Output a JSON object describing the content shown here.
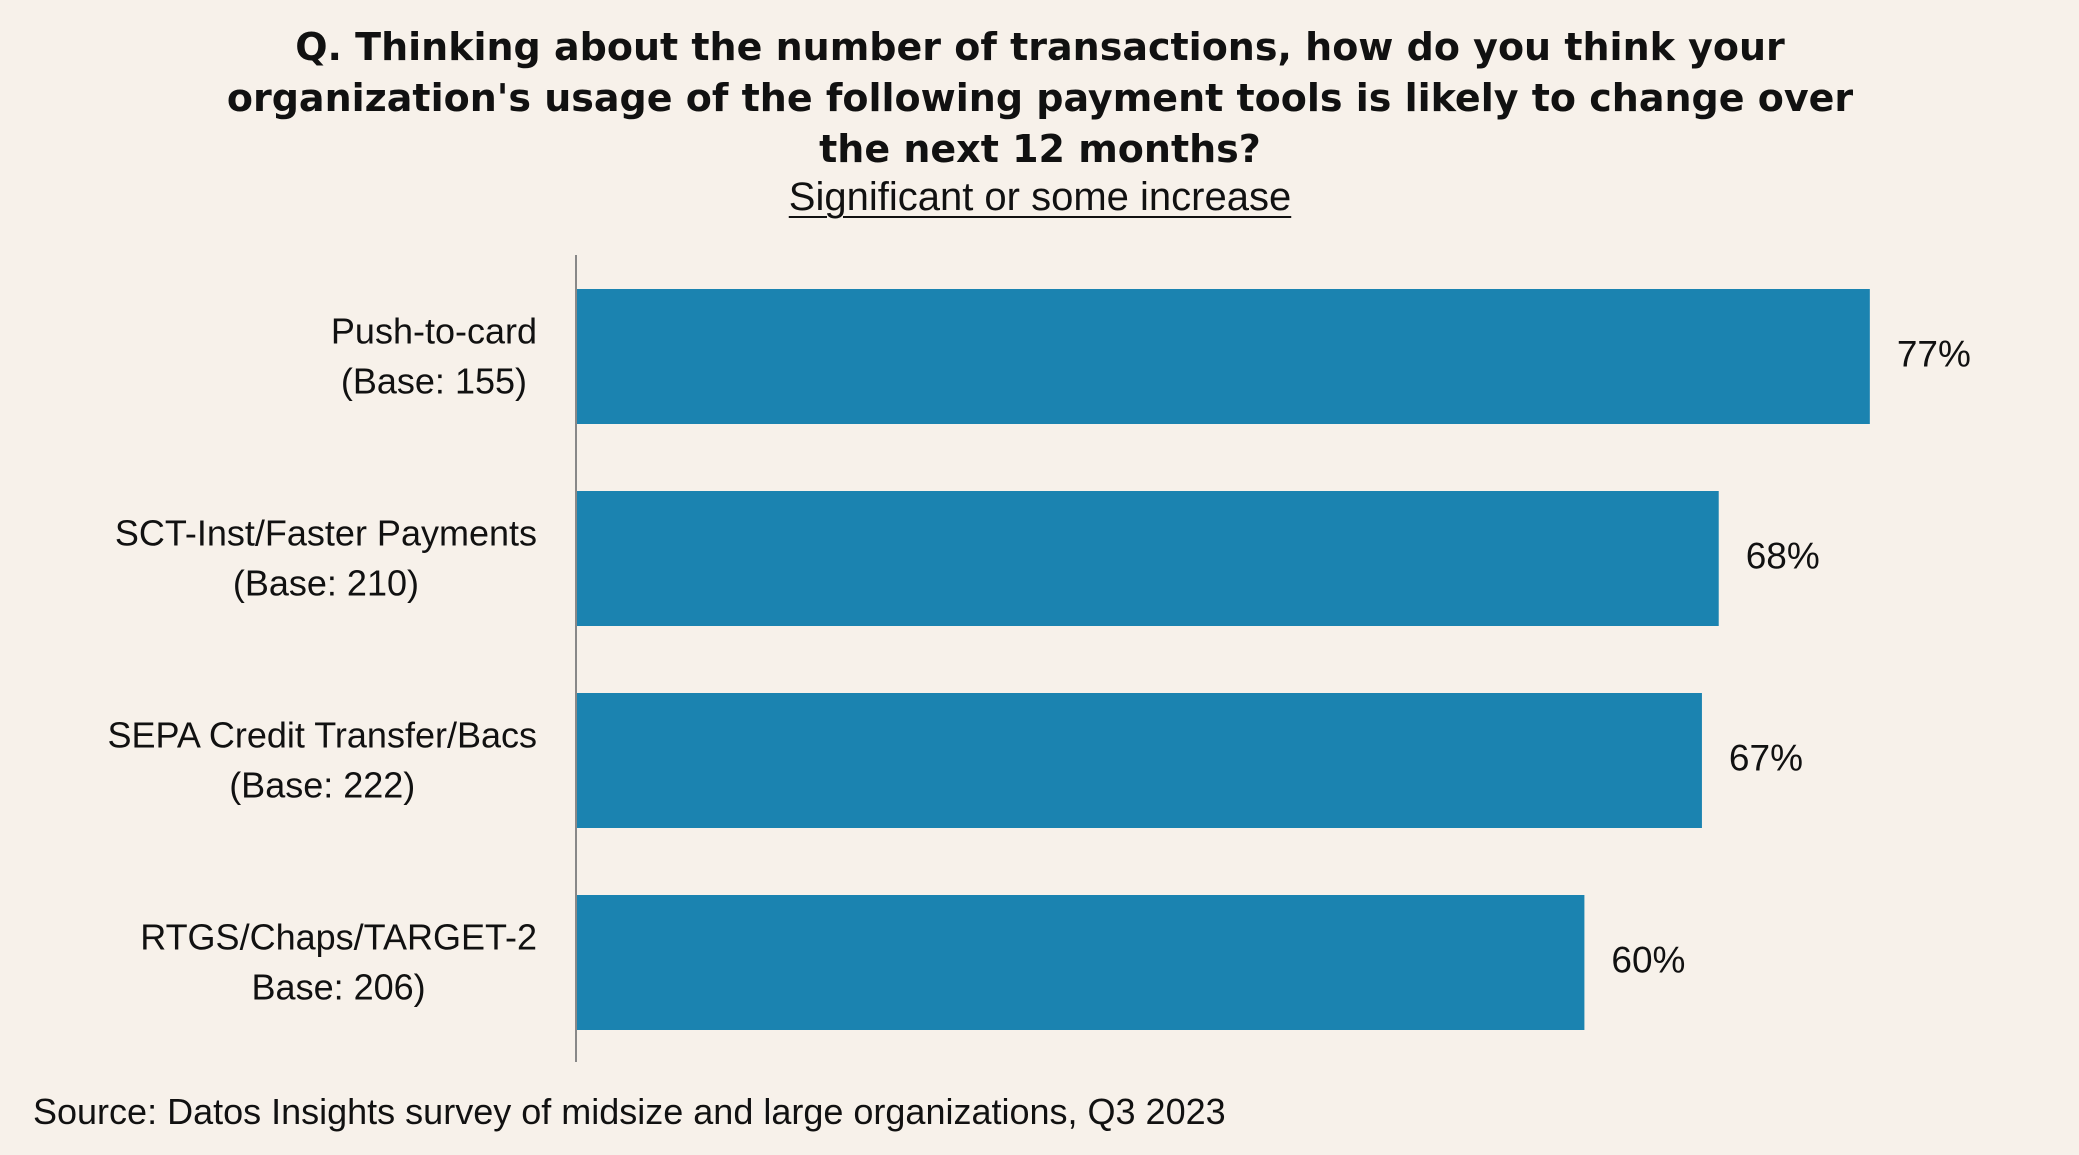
{
  "header": {
    "title": "Q. Thinking about the number of transactions, how do you think your organization's usage of the following payment tools is likely to change over the next 12 months?",
    "subtitle": "Significant or some increase"
  },
  "footer": {
    "source": "Source: Datos Insights survey of midsize and large organizations, Q3 2023"
  },
  "chart_data": {
    "type": "bar",
    "orientation": "horizontal",
    "title": "Q. Thinking about the number of transactions, how do you think your organization's usage of the following payment tools is likely to change over the next 12 months?",
    "subtitle": "Significant or some increase",
    "categories": [
      [
        "Push-to-card",
        "(Base: 155)"
      ],
      [
        "SCT-Inst/Faster Payments",
        "(Base: 210)"
      ],
      [
        "SEPA Credit Transfer/Bacs",
        "(Base: 222)"
      ],
      [
        "RTGS/Chaps/TARGET-2",
        "Base: 206)"
      ]
    ],
    "values": [
      77,
      68,
      67,
      60
    ],
    "value_labels": [
      "77%",
      "68%",
      "67%",
      "60%"
    ],
    "unit": "%",
    "xlim": [
      0,
      100
    ],
    "grid": false,
    "legend": "none",
    "colors": {
      "bar": "#1b83b0",
      "axis": "#888888",
      "background": "#f7f1ea"
    }
  }
}
